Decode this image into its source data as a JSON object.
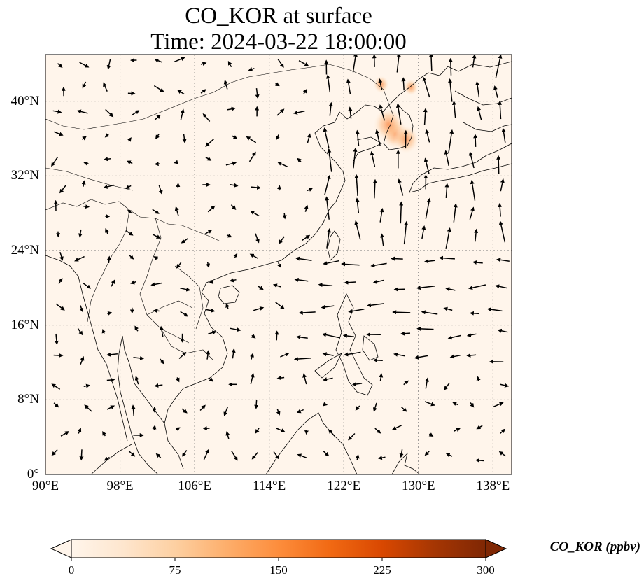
{
  "title": {
    "line1": "CO_KOR at surface",
    "line2": "Time: 2024-03-22 18:00:00"
  },
  "map": {
    "lon_range": [
      90,
      140
    ],
    "lat_range": [
      0,
      45
    ],
    "lat_ticks": [
      {
        "value": 0,
        "label": "0°"
      },
      {
        "value": 8,
        "label": "8°N"
      },
      {
        "value": 16,
        "label": "16°N"
      },
      {
        "value": 24,
        "label": "24°N"
      },
      {
        "value": 32,
        "label": "32°N"
      },
      {
        "value": 40,
        "label": "40°N"
      }
    ],
    "lon_ticks": [
      {
        "value": 90,
        "label": "90°E"
      },
      {
        "value": 98,
        "label": "98°E"
      },
      {
        "value": 106,
        "label": "106°E"
      },
      {
        "value": 114,
        "label": "114°E"
      },
      {
        "value": 122,
        "label": "122°E"
      },
      {
        "value": 130,
        "label": "130°E"
      },
      {
        "value": 138,
        "label": "138°E"
      }
    ],
    "gridlines": true,
    "background_color": "#fff5eb",
    "hotspots": [
      {
        "lon": 127.5,
        "lat": 36.5,
        "value": 90
      },
      {
        "lon": 126.8,
        "lat": 37.5,
        "value": 110
      },
      {
        "lon": 128.7,
        "lat": 35.9,
        "value": 80
      },
      {
        "lon": 126.0,
        "lat": 41.8,
        "value": 25
      },
      {
        "lon": 129.2,
        "lat": 41.5,
        "value": 20
      }
    ]
  },
  "colorbar": {
    "label": "CO_KOR (ppbv)",
    "min": 0,
    "max": 300,
    "ticks": [
      "0",
      "75",
      "150",
      "225",
      "300"
    ],
    "colormap": [
      "#fff5eb",
      "#fee6ce",
      "#fdd0a2",
      "#fdae6b",
      "#fd8d3c",
      "#f16913",
      "#d94801",
      "#a63603",
      "#7f2704"
    ],
    "extend": "both"
  }
}
